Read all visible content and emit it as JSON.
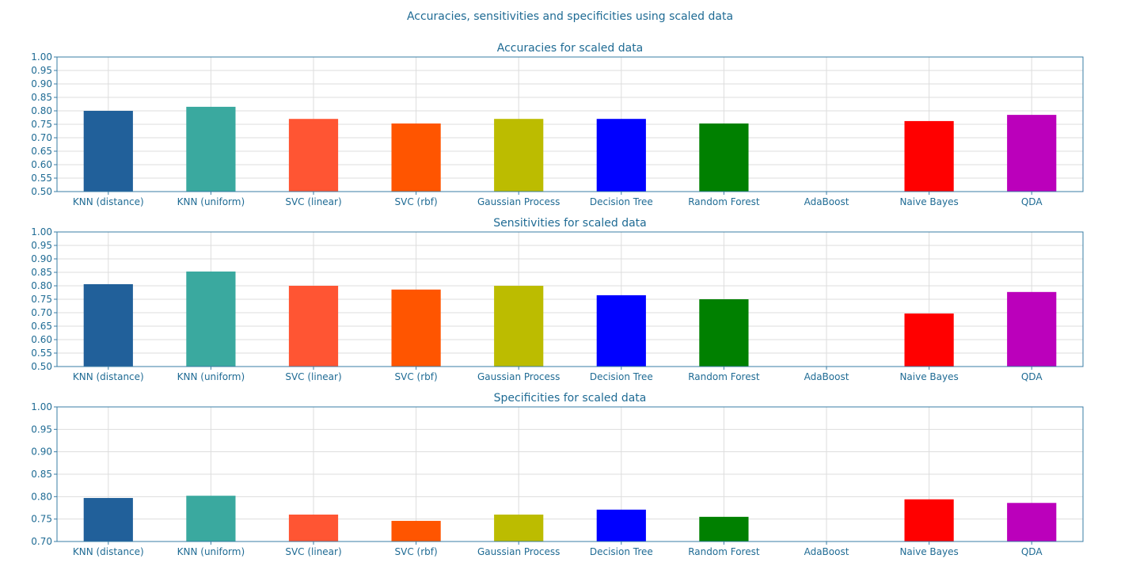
{
  "suptitle": "Accuracies, sensitivities and specificities using scaled data",
  "text_color": "#1f6b94",
  "axis_color": "#3a7ca5",
  "grid_color": "#dddddd",
  "categories": [
    "KNN (distance)",
    "KNN (uniform)",
    "SVC (linear)",
    "SVC (rbf)",
    "Gaussian Process",
    "Decision Tree",
    "Random Forest",
    "AdaBoost",
    "Naive Bayes",
    "QDA"
  ],
  "bar_colors": [
    "#21609a",
    "#3aa99f",
    "#ff5533",
    "#ff5500",
    "#bcbc00",
    "#0000ff",
    "#008000",
    "#ffffff",
    "#ff0000",
    "#bb00bb"
  ],
  "chart_data": [
    {
      "type": "bar",
      "title": "Accuracies for scaled data",
      "categories": [
        "KNN (distance)",
        "KNN (uniform)",
        "SVC (linear)",
        "SVC (rbf)",
        "Gaussian Process",
        "Decision Tree",
        "Random Forest",
        "AdaBoost",
        "Naive Bayes",
        "QDA"
      ],
      "values": [
        0.8,
        0.815,
        0.77,
        0.753,
        0.77,
        0.77,
        0.753,
        0.5,
        0.762,
        0.785
      ],
      "ylim": [
        0.5,
        1.0
      ],
      "yticks": [
        "0.50",
        "0.55",
        "0.60",
        "0.65",
        "0.70",
        "0.75",
        "0.80",
        "0.85",
        "0.90",
        "0.95",
        "1.00"
      ],
      "grid": true
    },
    {
      "type": "bar",
      "title": "Sensitivities for scaled data",
      "categories": [
        "KNN (distance)",
        "KNN (uniform)",
        "SVC (linear)",
        "SVC (rbf)",
        "Gaussian Process",
        "Decision Tree",
        "Random Forest",
        "AdaBoost",
        "Naive Bayes",
        "QDA"
      ],
      "values": [
        0.806,
        0.853,
        0.8,
        0.786,
        0.8,
        0.765,
        0.75,
        0.5,
        0.697,
        0.777
      ],
      "ylim": [
        0.5,
        1.0
      ],
      "yticks": [
        "0.50",
        "0.55",
        "0.60",
        "0.65",
        "0.70",
        "0.75",
        "0.80",
        "0.85",
        "0.90",
        "0.95",
        "1.00"
      ],
      "grid": true
    },
    {
      "type": "bar",
      "title": "Specificities for scaled data",
      "categories": [
        "KNN (distance)",
        "KNN (uniform)",
        "SVC (linear)",
        "SVC (rbf)",
        "Gaussian Process",
        "Decision Tree",
        "Random Forest",
        "AdaBoost",
        "Naive Bayes",
        "QDA"
      ],
      "values": [
        0.797,
        0.802,
        0.76,
        0.746,
        0.76,
        0.771,
        0.755,
        0.7,
        0.794,
        0.786
      ],
      "ylim": [
        0.7,
        1.0
      ],
      "yticks": [
        "0.70",
        "0.75",
        "0.80",
        "0.85",
        "0.90",
        "0.95",
        "1.00"
      ],
      "grid": true
    }
  ]
}
